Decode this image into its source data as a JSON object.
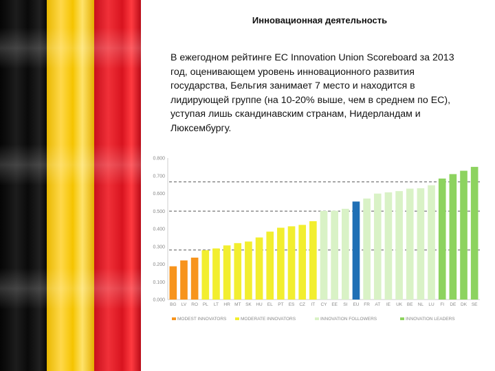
{
  "title": "Инновационная деятельность",
  "paragraph": "В ежегодном рейтинге ЕС Innovation Union Scoreboard за 2013 год, оценивающем уровень инновационного развития государства, Бельгия занимает 7 место и находится в лидирующей группе (на 10-20% выше, чем в среднем по ЕС), уступая лишь скандинавским странам, Нидерландам и Люксембургу.",
  "colors": {
    "modest": "#f7941d",
    "moderate": "#f2ee2f",
    "followers": "#d9f2c6",
    "leaders": "#8dd35f",
    "eu": "#1f6fb5",
    "flag_black": "#111111",
    "flag_yellow": "#f5c400",
    "flag_red": "#d8141f"
  },
  "chart_data": {
    "type": "bar",
    "categories": [
      "BG",
      "LV",
      "RO",
      "PL",
      "LT",
      "HR",
      "MT",
      "SK",
      "HU",
      "EL",
      "PT",
      "ES",
      "CZ",
      "IT",
      "CY",
      "EE",
      "SI",
      "EU",
      "FR",
      "AT",
      "IE",
      "UK",
      "BE",
      "NL",
      "LU",
      "FI",
      "DE",
      "DK",
      "SE"
    ],
    "values": [
      0.188,
      0.221,
      0.237,
      0.279,
      0.289,
      0.306,
      0.319,
      0.328,
      0.351,
      0.384,
      0.406,
      0.414,
      0.422,
      0.443,
      0.501,
      0.502,
      0.513,
      0.554,
      0.571,
      0.599,
      0.606,
      0.613,
      0.627,
      0.629,
      0.646,
      0.684,
      0.709,
      0.728,
      0.75
    ],
    "groups": [
      "modest",
      "modest",
      "modest",
      "moderate",
      "moderate",
      "moderate",
      "moderate",
      "moderate",
      "moderate",
      "moderate",
      "moderate",
      "moderate",
      "moderate",
      "moderate",
      "followers",
      "followers",
      "followers",
      "eu",
      "followers",
      "followers",
      "followers",
      "followers",
      "followers",
      "followers",
      "followers",
      "leaders",
      "leaders",
      "leaders",
      "leaders"
    ],
    "ylim": [
      0,
      0.8
    ],
    "yticks": [
      "0.000",
      "0.100",
      "0.200",
      "0.300",
      "0.400",
      "0.500",
      "0.600",
      "0.700",
      "0.800"
    ],
    "reference_lines": [
      0.28,
      0.5,
      0.665
    ],
    "grid": false,
    "legend_position": "bottom",
    "legend": [
      {
        "key": "modest",
        "label": "MODEST INNOVATORS"
      },
      {
        "key": "moderate",
        "label": "MODERATE INNOVATORS"
      },
      {
        "key": "followers",
        "label": "INNOVATION FOLLOWERS"
      },
      {
        "key": "leaders",
        "label": "INNOVATION LEADERS"
      }
    ]
  }
}
